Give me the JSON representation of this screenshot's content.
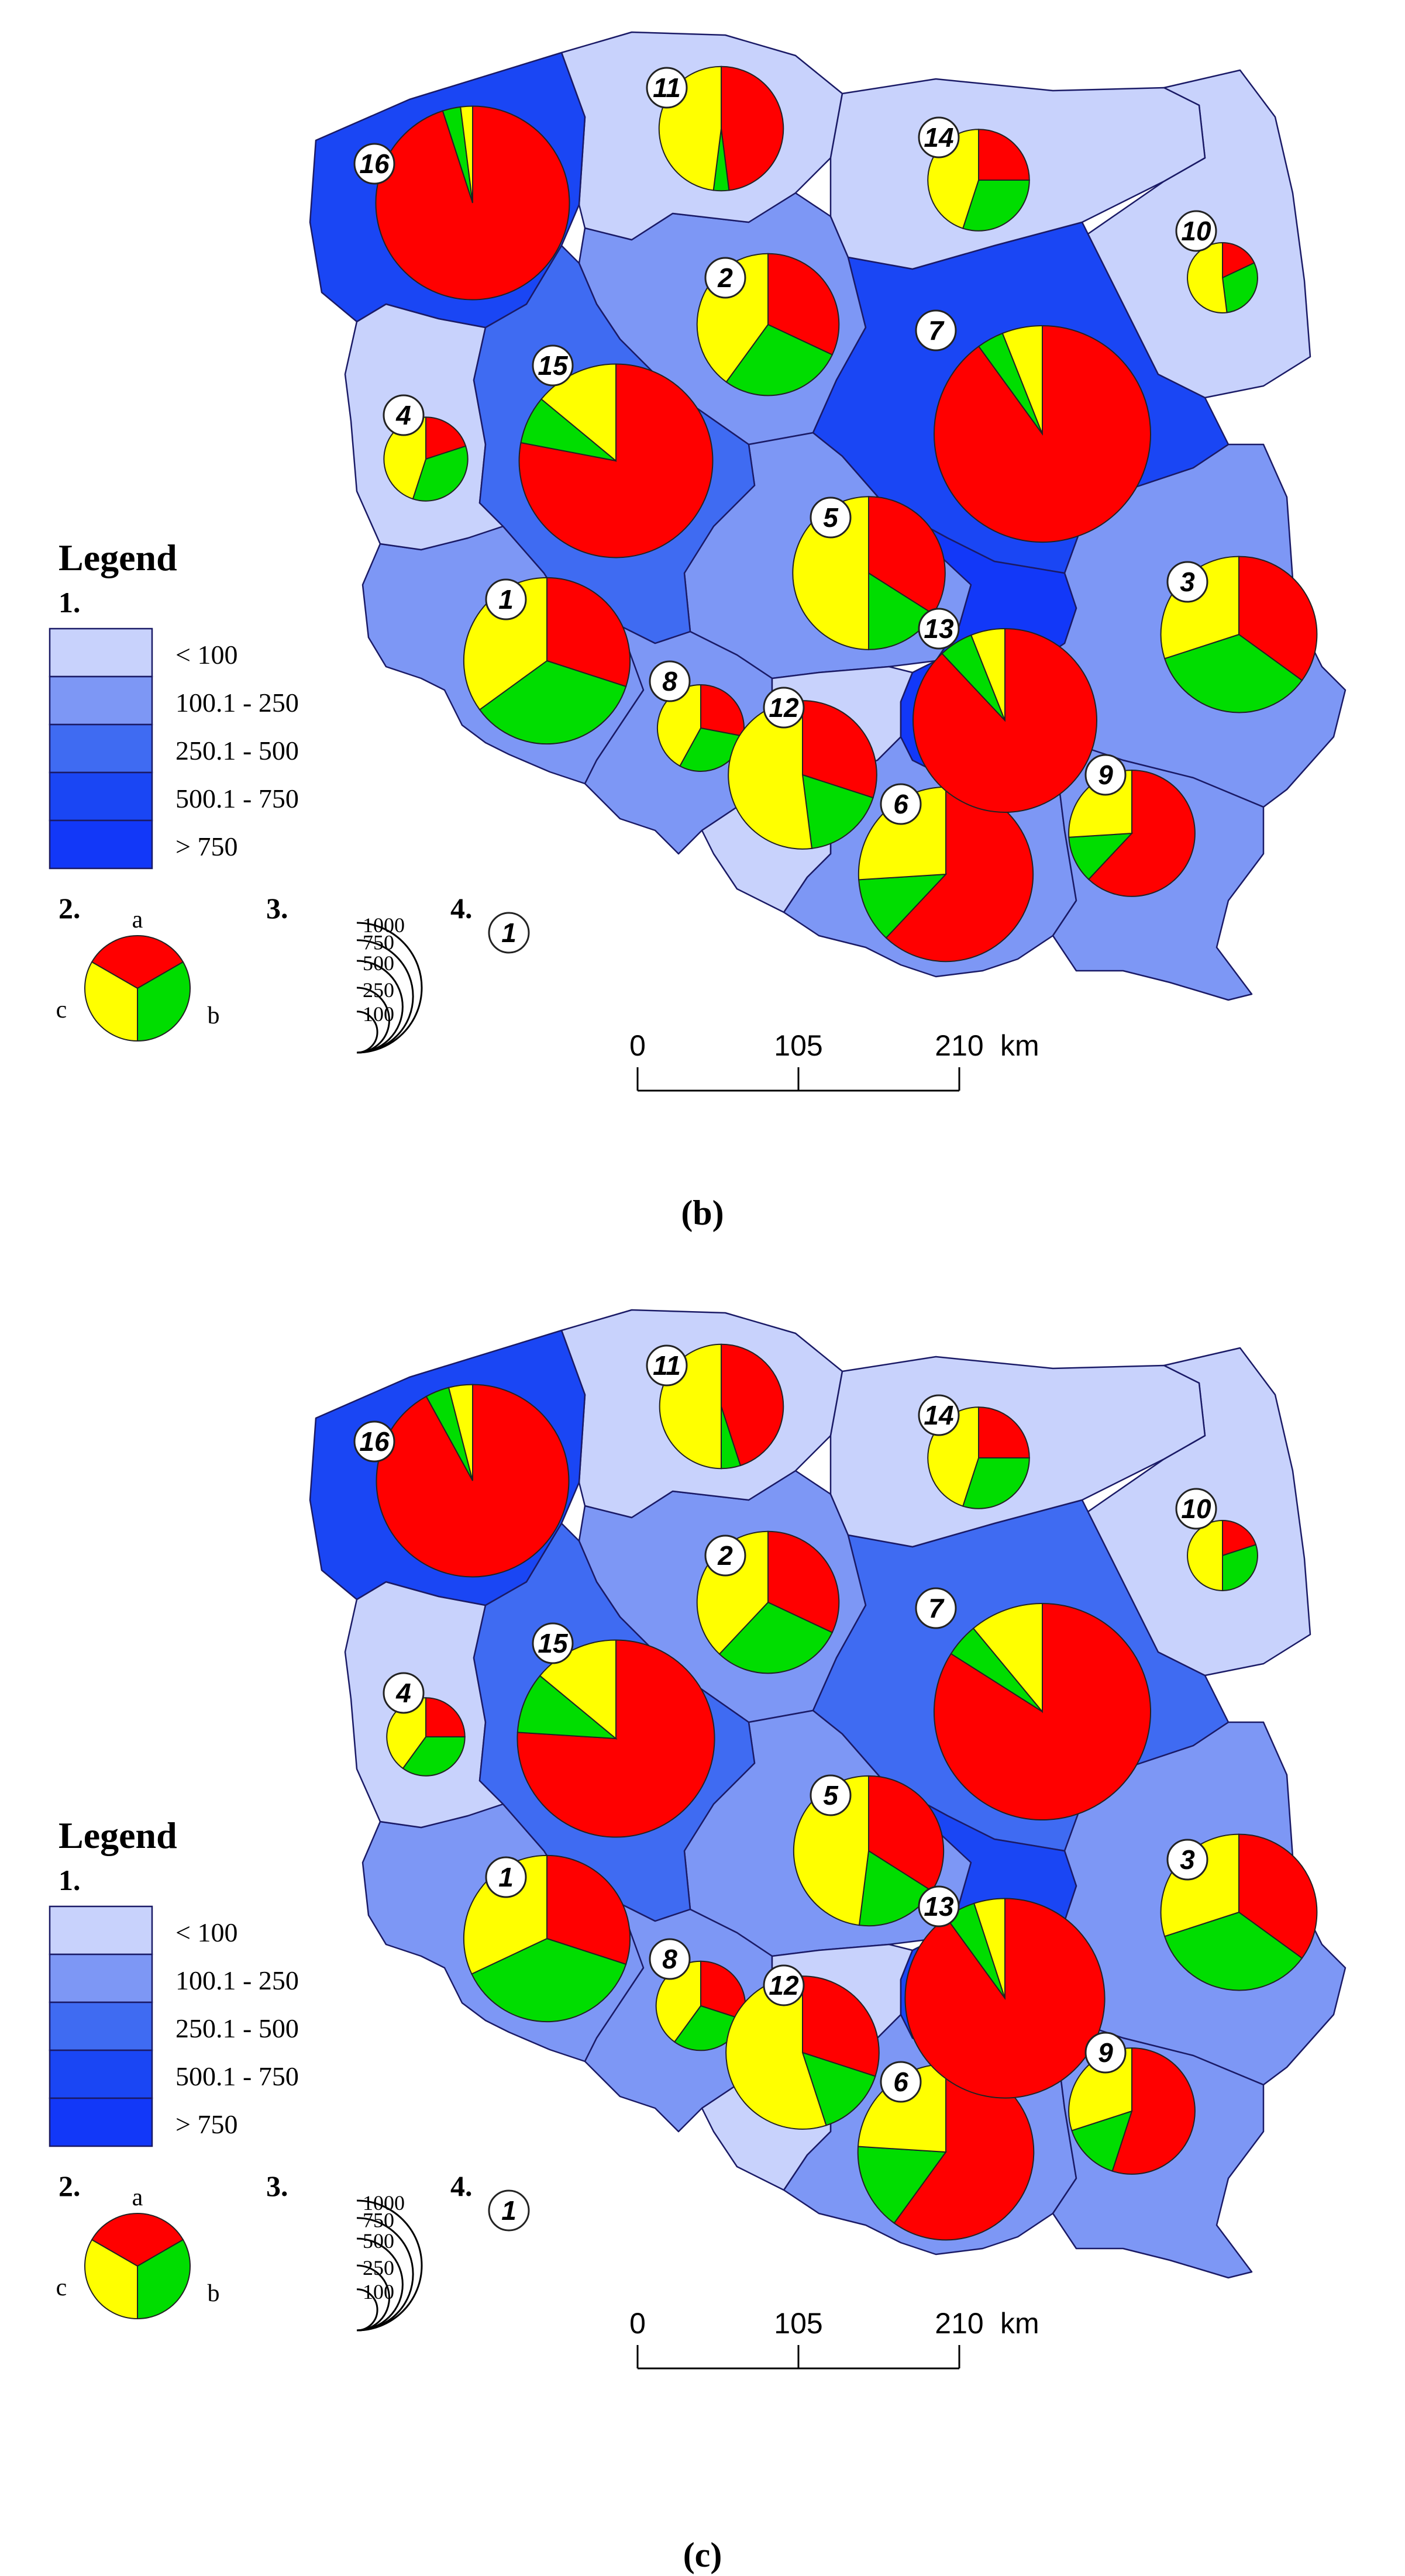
{
  "panels": [
    {
      "caption": "(b)",
      "regions": [
        {
          "id": 1,
          "class": 2,
          "pie": {
            "a": 30,
            "b": 35,
            "c": 35
          },
          "size": 590
        },
        {
          "id": 2,
          "class": 2,
          "pie": {
            "a": 32,
            "b": 28,
            "c": 40
          },
          "size": 430
        },
        {
          "id": 3,
          "class": 2,
          "pie": {
            "a": 35,
            "b": 35,
            "c": 30
          },
          "size": 520
        },
        {
          "id": 4,
          "class": 1,
          "pie": {
            "a": 20,
            "b": 35,
            "c": 45
          },
          "size": 150
        },
        {
          "id": 5,
          "class": 2,
          "pie": {
            "a": 34,
            "b": 16,
            "c": 50
          },
          "size": 500
        },
        {
          "id": 6,
          "class": 2,
          "pie": {
            "a": 62,
            "b": 12,
            "c": 26
          },
          "size": 650
        },
        {
          "id": 7,
          "class": 4,
          "pie": {
            "a": 90,
            "b": 4,
            "c": 6
          },
          "size": 1000
        },
        {
          "id": 8,
          "class": 2,
          "pie": {
            "a": 28,
            "b": 30,
            "c": 42
          },
          "size": 160
        },
        {
          "id": 9,
          "class": 2,
          "pie": {
            "a": 62,
            "b": 12,
            "c": 26
          },
          "size": 340
        },
        {
          "id": 10,
          "class": 1,
          "pie": {
            "a": 18,
            "b": 30,
            "c": 52
          },
          "size": 105
        },
        {
          "id": 11,
          "class": 1,
          "pie": {
            "a": 48,
            "b": 4,
            "c": 48
          },
          "size": 330
        },
        {
          "id": 12,
          "class": 1,
          "pie": {
            "a": 30,
            "b": 18,
            "c": 52
          },
          "size": 470
        },
        {
          "id": 13,
          "class": 5,
          "pie": {
            "a": 88,
            "b": 6,
            "c": 6
          },
          "size": 720
        },
        {
          "id": 14,
          "class": 1,
          "pie": {
            "a": 25,
            "b": 30,
            "c": 45
          },
          "size": 220
        },
        {
          "id": 15,
          "class": 3,
          "pie": {
            "a": 78,
            "b": 8,
            "c": 14
          },
          "size": 800
        },
        {
          "id": 16,
          "class": 4,
          "pie": {
            "a": 95,
            "b": 3,
            "c": 2
          },
          "size": 800
        }
      ]
    },
    {
      "caption": "(c)",
      "regions": [
        {
          "id": 1,
          "class": 2,
          "pie": {
            "a": 30,
            "b": 38,
            "c": 32
          },
          "size": 590
        },
        {
          "id": 2,
          "class": 2,
          "pie": {
            "a": 32,
            "b": 30,
            "c": 38
          },
          "size": 430
        },
        {
          "id": 3,
          "class": 2,
          "pie": {
            "a": 35,
            "b": 35,
            "c": 30
          },
          "size": 520
        },
        {
          "id": 4,
          "class": 1,
          "pie": {
            "a": 25,
            "b": 35,
            "c": 40
          },
          "size": 130
        },
        {
          "id": 5,
          "class": 2,
          "pie": {
            "a": 34,
            "b": 18,
            "c": 48
          },
          "size": 480
        },
        {
          "id": 6,
          "class": 2,
          "pie": {
            "a": 60,
            "b": 16,
            "c": 24
          },
          "size": 660
        },
        {
          "id": 7,
          "class": 3,
          "pie": {
            "a": 84,
            "b": 5,
            "c": 11
          },
          "size": 1000
        },
        {
          "id": 8,
          "class": 2,
          "pie": {
            "a": 30,
            "b": 30,
            "c": 40
          },
          "size": 170
        },
        {
          "id": 9,
          "class": 2,
          "pie": {
            "a": 55,
            "b": 15,
            "c": 30
          },
          "size": 340
        },
        {
          "id": 10,
          "class": 1,
          "pie": {
            "a": 20,
            "b": 30,
            "c": 50
          },
          "size": 105
        },
        {
          "id": 11,
          "class": 1,
          "pie": {
            "a": 45,
            "b": 5,
            "c": 50
          },
          "size": 330
        },
        {
          "id": 12,
          "class": 1,
          "pie": {
            "a": 30,
            "b": 15,
            "c": 55
          },
          "size": 500
        },
        {
          "id": 13,
          "class": 4,
          "pie": {
            "a": 90,
            "b": 5,
            "c": 5
          },
          "size": 850
        },
        {
          "id": 14,
          "class": 1,
          "pie": {
            "a": 25,
            "b": 30,
            "c": 45
          },
          "size": 220
        },
        {
          "id": 15,
          "class": 3,
          "pie": {
            "a": 76,
            "b": 10,
            "c": 14
          },
          "size": 830
        },
        {
          "id": 16,
          "class": 4,
          "pie": {
            "a": 92,
            "b": 4,
            "c": 4
          },
          "size": 790
        }
      ]
    }
  ],
  "legend": {
    "title": "Legend",
    "section1_label": "1.",
    "classes": [
      "< 100",
      "100.1 - 250",
      "250.1 - 500",
      "500.1 - 750",
      "> 750"
    ],
    "section2_label": "2.",
    "pie_labels": {
      "a": "a",
      "b": "b",
      "c": "c"
    },
    "section3_label": "3.",
    "size_labels": [
      "1000",
      "750",
      "500",
      "250",
      "100"
    ],
    "section4_label": "4.",
    "marker_example": "1"
  },
  "scalebar": {
    "ticks": [
      "0",
      "105",
      "210"
    ],
    "unit": "km"
  },
  "colors": {
    "class_fills": [
      "#c8d2fc",
      "#7d97f5",
      "#3f6bf2",
      "#1a46f4",
      "#1238f8"
    ],
    "pie_a": "#ff0000",
    "pie_b": "#00dd00",
    "pie_c": "#ffff00",
    "border": "#1a1a66"
  }
}
